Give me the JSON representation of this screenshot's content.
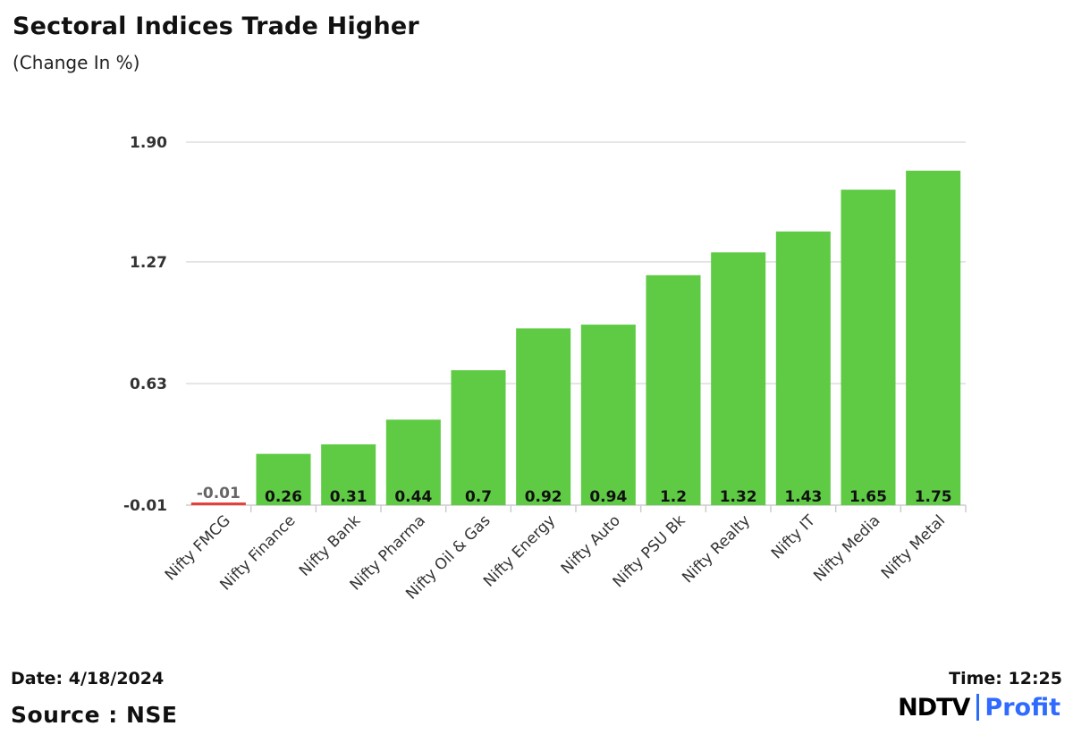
{
  "header": {
    "title": "Sectoral Indices Trade Higher",
    "subtitle": "(Change In %)"
  },
  "footer": {
    "date": "Date: 4/18/2024",
    "source": "Source : NSE",
    "time": "Time: 12:25",
    "brand_left": "NDTV",
    "brand_right": "Profit"
  },
  "colors": {
    "positive": "#5fcb45",
    "negative": "#e8403a",
    "grid": "#dddddd",
    "brand_accent": "#2f6bff"
  },
  "chart_data": {
    "type": "bar",
    "title": "Sectoral Indices Trade Higher",
    "subtitle": "(Change In %)",
    "categories": [
      "Nifty FMCG",
      "Nifty Finance",
      "Nifty Bank",
      "Nifty Pharma",
      "Nifty Oil & Gas",
      "Nifty Energy",
      "Nifty Auto",
      "Nifty PSU Bk",
      "Nifty Realty",
      "Nifty IT",
      "Nifty Media",
      "Nifty Metal"
    ],
    "values": [
      -0.01,
      0.26,
      0.31,
      0.44,
      0.7,
      0.92,
      0.94,
      1.2,
      1.32,
      1.43,
      1.65,
      1.75
    ],
    "data_labels": [
      "-0.01",
      "0.26",
      "0.31",
      "0.44",
      "0.7",
      "0.92",
      "0.94",
      "1.2",
      "1.32",
      "1.43",
      "1.65",
      "1.75"
    ],
    "y_ticks": [
      -0.01,
      0.63,
      1.27,
      1.9
    ],
    "y_tick_labels": [
      "-0.01",
      "0.63",
      "1.27",
      "1.90"
    ],
    "ylim": [
      -0.01,
      1.9
    ],
    "grid": true,
    "legend": "none"
  }
}
